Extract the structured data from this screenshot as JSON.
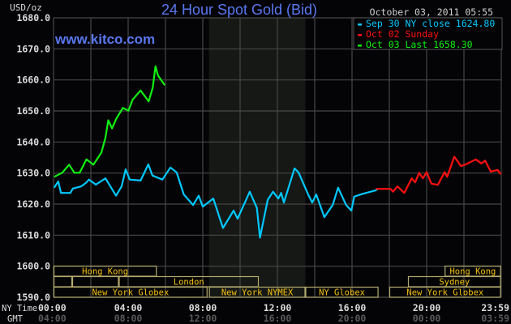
{
  "chart_data": {
    "type": "line",
    "title": "24 Hour Spot Gold (Bid)",
    "ylabel": "USD/oz",
    "watermark": "www.kitco.com",
    "timestamp": "October 03, 2011 05:55",
    "ylim": [
      1590,
      1680
    ],
    "yticks": [
      "1680.0",
      "1670.0",
      "1660.0",
      "1650.0",
      "1640.0",
      "1630.0",
      "1620.0",
      "1610.0",
      "1600.0",
      "1590.0"
    ],
    "xlim": [
      "00:00",
      "23:59"
    ],
    "x_row_labels": {
      "ny": "NY Time",
      "gmt": "GMT"
    },
    "xticks_ny": [
      "00:00",
      "04:00",
      "08:00",
      "12:00",
      "16:00",
      "20:00",
      "23:59"
    ],
    "xticks_gmt": [
      "04:00",
      "08:00",
      "12:00",
      "16:00",
      "20:00",
      "00:00",
      "03:59"
    ],
    "grid": true,
    "shaded_period": [
      "08:20",
      "13:30"
    ],
    "legend_position": "top-right",
    "series": [
      {
        "name": "Sep 30 NY close 1624.80",
        "color": "#00c8ff",
        "points": [
          [
            "00:02",
            1625.3
          ],
          [
            "00:15",
            1627.3
          ],
          [
            "00:24",
            1623.6
          ],
          [
            "00:54",
            1623.6
          ],
          [
            "01:02",
            1625.0
          ],
          [
            "01:29",
            1625.7
          ],
          [
            "01:46",
            1627.0
          ],
          [
            "01:54",
            1627.9
          ],
          [
            "02:16",
            1626.3
          ],
          [
            "02:47",
            1628.3
          ],
          [
            "03:21",
            1622.7
          ],
          [
            "03:39",
            1625.7
          ],
          [
            "03:52",
            1631.2
          ],
          [
            "04:05",
            1627.9
          ],
          [
            "04:40",
            1627.6
          ],
          [
            "05:05",
            1632.8
          ],
          [
            "05:18",
            1629.2
          ],
          [
            "05:50",
            1627.9
          ],
          [
            "06:16",
            1631.8
          ],
          [
            "06:36",
            1630.2
          ],
          [
            "06:59",
            1623.1
          ],
          [
            "07:29",
            1619.7
          ],
          [
            "07:47",
            1622.7
          ],
          [
            "08:00",
            1619.2
          ],
          [
            "08:34",
            1621.8
          ],
          [
            "09:05",
            1612.3
          ],
          [
            "09:39",
            1617.9
          ],
          [
            "09:52",
            1615.3
          ],
          [
            "10:31",
            1624.0
          ],
          [
            "10:54",
            1618.8
          ],
          [
            "11:04",
            1609.2
          ],
          [
            "11:29",
            1621.4
          ],
          [
            "11:46",
            1624.0
          ],
          [
            "12:03",
            1621.8
          ],
          [
            "12:12",
            1623.6
          ],
          [
            "12:21",
            1620.5
          ],
          [
            "12:55",
            1631.5
          ],
          [
            "13:08",
            1630.2
          ],
          [
            "13:39",
            1623.1
          ],
          [
            "13:52",
            1620.5
          ],
          [
            "14:05",
            1623.1
          ],
          [
            "14:31",
            1615.8
          ],
          [
            "14:58",
            1619.7
          ],
          [
            "15:15",
            1625.3
          ],
          [
            "15:41",
            1619.7
          ],
          [
            "15:58",
            1617.9
          ],
          [
            "16:07",
            1622.4
          ],
          [
            "16:33",
            1623.3
          ],
          [
            "17:16",
            1624.4
          ],
          [
            "17:21",
            1624.8
          ]
        ]
      },
      {
        "name": "Oct 02 Sunday",
        "color": "#ff1010",
        "points": [
          [
            "17:17",
            1624.9
          ],
          [
            "18:04",
            1624.9
          ],
          [
            "18:12",
            1624.0
          ],
          [
            "18:26",
            1625.7
          ],
          [
            "18:48",
            1623.6
          ],
          [
            "19:12",
            1628.3
          ],
          [
            "19:23",
            1627.0
          ],
          [
            "19:36",
            1630.1
          ],
          [
            "19:48",
            1628.3
          ],
          [
            "20:00",
            1630.3
          ],
          [
            "20:15",
            1626.6
          ],
          [
            "20:36",
            1626.2
          ],
          [
            "20:58",
            1630.3
          ],
          [
            "21:06",
            1628.8
          ],
          [
            "21:29",
            1635.3
          ],
          [
            "21:50",
            1632.3
          ],
          [
            "22:04",
            1632.7
          ],
          [
            "22:38",
            1634.4
          ],
          [
            "22:56",
            1633.1
          ],
          [
            "23:08",
            1634.0
          ],
          [
            "23:26",
            1630.5
          ],
          [
            "23:48",
            1631.0
          ],
          [
            "23:59",
            1629.6
          ]
        ]
      },
      {
        "name": "Oct 03 Last 1658.30",
        "color": "#10f010",
        "points": [
          [
            "00:02",
            1628.8
          ],
          [
            "00:28",
            1630.1
          ],
          [
            "00:50",
            1632.7
          ],
          [
            "01:07",
            1630.1
          ],
          [
            "01:24",
            1630.1
          ],
          [
            "01:46",
            1634.4
          ],
          [
            "02:08",
            1632.7
          ],
          [
            "02:34",
            1636.6
          ],
          [
            "02:47",
            1641.4
          ],
          [
            "02:56",
            1647.0
          ],
          [
            "03:08",
            1644.4
          ],
          [
            "03:22",
            1647.5
          ],
          [
            "03:43",
            1651.0
          ],
          [
            "04:01",
            1650.1
          ],
          [
            "04:14",
            1653.6
          ],
          [
            "04:40",
            1656.6
          ],
          [
            "05:06",
            1653.1
          ],
          [
            "05:19",
            1657.5
          ],
          [
            "05:28",
            1664.4
          ],
          [
            "05:36",
            1661.4
          ],
          [
            "05:58",
            1658.3
          ]
        ]
      }
    ],
    "sessions": [
      {
        "label": "Hong Kong",
        "row": 1,
        "start": "00:00",
        "end": "05:32"
      },
      {
        "label": "Hong Kong",
        "row": 1,
        "start": "20:58",
        "end": "23:59"
      },
      {
        "label": "",
        "row": 2,
        "start": "00:00",
        "end": "01:00"
      },
      {
        "label": "",
        "row": 2,
        "start": "01:00",
        "end": "03:30"
      },
      {
        "label": "London",
        "row": 2,
        "start": "03:30",
        "end": "11:00"
      },
      {
        "label": "Sydney",
        "row": 2,
        "start": "19:00",
        "end": "23:59"
      },
      {
        "label": "New York Globex",
        "row": 3,
        "start": "00:00",
        "end": "08:15"
      },
      {
        "label": "New York NYMEX",
        "row": 3,
        "start": "08:20",
        "end": "13:30"
      },
      {
        "label": "NY Globex",
        "row": 3,
        "start": "13:30",
        "end": "17:25"
      },
      {
        "label": "New York Globex",
        "row": 3,
        "start": "18:00",
        "end": "23:59"
      }
    ]
  }
}
